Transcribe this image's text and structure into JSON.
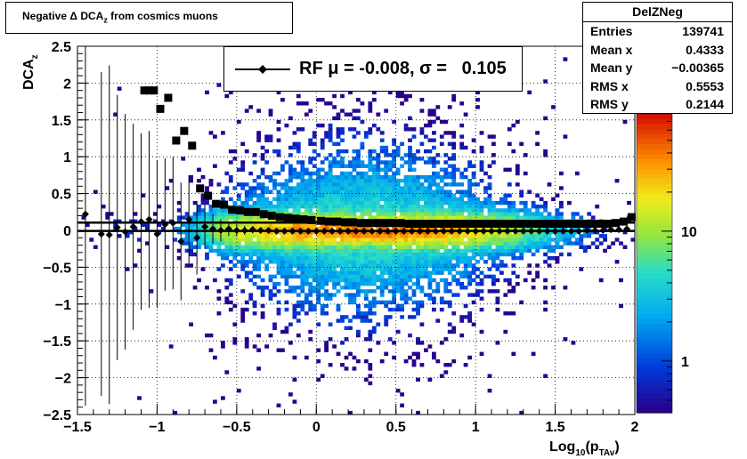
{
  "title": "Negative Δ DCA_z from cosmics muons",
  "title_parts": {
    "main": "Negative Δ DCA",
    "sub": "z",
    "tail": " from cosmics muons"
  },
  "stats": {
    "name": "DelZNeg",
    "rows": [
      {
        "label": "Entries",
        "value": "139741"
      },
      {
        "label": "Mean x",
        "value": "0.4333"
      },
      {
        "label": "Mean y",
        "value": "−0.00365"
      },
      {
        "label": "RMS x",
        "value": "0.5553"
      },
      {
        "label": "RMS y",
        "value": "0.2144"
      }
    ]
  },
  "legend": {
    "text": "RF μ = -0.008, σ =   0.105"
  },
  "colors": {
    "marker": "#000000",
    "frame": "#000000",
    "grid": "#000000"
  },
  "chart_data": {
    "type": "heatmap",
    "xlabel": "Log10(pTAv)",
    "xlabel_parts": {
      "main": "Log",
      "sub1": "10",
      "open": "(p",
      "sub2": "TAv",
      "close": ")"
    },
    "ylabel": "DCA_z",
    "ylabel_parts": {
      "main": "DCA",
      "sub": "z"
    },
    "xlim": [
      -1.5,
      2
    ],
    "ylim": [
      -2.5,
      2.5
    ],
    "grid": true,
    "color_scale": "log",
    "colorbar_ticks": [
      "1",
      "10"
    ],
    "colorbar_tick_values": [
      1,
      10
    ],
    "colorbar_range": [
      0.4,
      80
    ],
    "x_ticks": [
      {
        "v": -1.5,
        "label": "−1.5"
      },
      {
        "v": -1,
        "label": "−1"
      },
      {
        "v": -0.5,
        "label": "−0.5"
      },
      {
        "v": 0,
        "label": "0"
      },
      {
        "v": 0.5,
        "label": "0.5"
      },
      {
        "v": 1,
        "label": "1"
      },
      {
        "v": 1.5,
        "label": "1.5"
      },
      {
        "v": 2,
        "label": "2"
      }
    ],
    "y_ticks": [
      {
        "v": -2.5,
        "label": "−2.5"
      },
      {
        "v": -2,
        "label": "−2"
      },
      {
        "v": -1.5,
        "label": "−1.5"
      },
      {
        "v": -1,
        "label": "−1"
      },
      {
        "v": -0.5,
        "label": "−0.5"
      },
      {
        "v": 0,
        "label": "0"
      },
      {
        "v": 0.5,
        "label": "0.5"
      },
      {
        "v": 1,
        "label": "1"
      },
      {
        "v": 1.5,
        "label": "1.5"
      },
      {
        "v": 2,
        "label": "2"
      },
      {
        "v": 2.5,
        "label": "2.5"
      }
    ],
    "series": [
      {
        "name": "RF",
        "marker": "diamond",
        "x": [
          -1.45,
          -1.35,
          -1.3,
          -1.25,
          -1.2,
          -1.15,
          -1.1,
          -1.05,
          -1.0,
          -0.95,
          -0.9,
          -0.85,
          -0.8,
          -0.75,
          -0.7,
          -0.65,
          -0.6,
          -0.55,
          -0.5,
          -0.45,
          -0.4,
          -0.35,
          -0.3,
          -0.25,
          -0.2,
          -0.15,
          -0.1,
          -0.05,
          0.0,
          0.05,
          0.1,
          0.15,
          0.2,
          0.25,
          0.3,
          0.35,
          0.4,
          0.45,
          0.5,
          0.55,
          0.6,
          0.65,
          0.7,
          0.75,
          0.8,
          0.85,
          0.9,
          0.95,
          1.0,
          1.05,
          1.1,
          1.15,
          1.2,
          1.25,
          1.3,
          1.35,
          1.4,
          1.45,
          1.5,
          1.55,
          1.6,
          1.65,
          1.7,
          1.75,
          1.8,
          1.85,
          1.9,
          1.95
        ],
        "y": [
          0.22,
          -0.05,
          -0.06,
          0.04,
          -0.02,
          0.05,
          0.12,
          0.15,
          -0.05,
          0.08,
          0.1,
          -0.15,
          0.15,
          -0.1,
          0.05,
          0.02,
          0.0,
          0.02,
          0.0,
          0.0,
          0.01,
          0.0,
          0.0,
          -0.01,
          -0.01,
          -0.01,
          -0.01,
          -0.01,
          -0.01,
          -0.01,
          -0.01,
          -0.01,
          -0.01,
          -0.01,
          -0.01,
          -0.01,
          -0.01,
          -0.01,
          -0.01,
          -0.01,
          -0.01,
          -0.01,
          -0.01,
          -0.01,
          -0.01,
          -0.01,
          -0.01,
          -0.01,
          -0.01,
          -0.01,
          -0.01,
          -0.01,
          -0.01,
          -0.01,
          -0.01,
          -0.01,
          -0.01,
          -0.01,
          -0.01,
          -0.01,
          -0.01,
          -0.01,
          0.0,
          0.0,
          0.0,
          0.01,
          0.01,
          0.02
        ],
        "yerr": [
          2.6,
          2.2,
          2.3,
          1.8,
          1.6,
          1.4,
          1.2,
          1.2,
          1.0,
          0.9,
          0.9,
          0.8,
          0.6,
          0.5,
          0.3,
          0.2,
          0.15,
          0.1,
          0.08,
          0.06,
          0.05,
          0.04,
          0.04,
          0.03,
          0.03,
          0.03,
          0.03,
          0.03,
          0.03,
          0.03,
          0.03,
          0.03,
          0.03,
          0.03,
          0.03,
          0.03,
          0.03,
          0.03,
          0.03,
          0.03,
          0.03,
          0.03,
          0.03,
          0.03,
          0.03,
          0.03,
          0.03,
          0.03,
          0.03,
          0.03,
          0.03,
          0.03,
          0.03,
          0.03,
          0.03,
          0.03,
          0.03,
          0.03,
          0.03,
          0.03,
          0.03,
          0.03,
          0.03,
          0.03,
          0.03,
          0.03,
          0.03,
          0.03
        ]
      },
      {
        "marker": "square",
        "x": [
          -1.08,
          -1.05,
          -1.02,
          -0.98,
          -0.93,
          -0.88,
          -0.83,
          -0.78,
          -0.73,
          -0.68,
          -0.63,
          -0.58,
          -0.53,
          -0.48,
          -0.43,
          -0.38,
          -0.33,
          -0.28,
          -0.23,
          -0.18,
          -0.13,
          -0.08,
          -0.03,
          0.03,
          0.08,
          0.13,
          0.18,
          0.23,
          0.28,
          0.33,
          0.38,
          0.43,
          0.48,
          0.53,
          0.58,
          0.63,
          0.68,
          0.73,
          0.78,
          0.83,
          0.88,
          0.93,
          0.98,
          1.03,
          1.08,
          1.13,
          1.18,
          1.23,
          1.28,
          1.33,
          1.38,
          1.43,
          1.48,
          1.53,
          1.58,
          1.63,
          1.68,
          1.73,
          1.78,
          1.83,
          1.88,
          1.93,
          1.98
        ],
        "y": [
          1.9,
          1.9,
          1.9,
          1.65,
          1.8,
          1.22,
          1.35,
          1.15,
          0.57,
          0.47,
          0.36,
          0.35,
          0.28,
          0.27,
          0.25,
          0.25,
          0.22,
          0.2,
          0.18,
          0.17,
          0.16,
          0.15,
          0.14,
          0.13,
          0.12,
          0.12,
          0.11,
          0.11,
          0.1,
          0.1,
          0.1,
          0.1,
          0.1,
          0.1,
          0.09,
          0.09,
          0.09,
          0.09,
          0.09,
          0.09,
          0.09,
          0.09,
          0.09,
          0.09,
          0.09,
          0.09,
          0.09,
          0.09,
          0.09,
          0.09,
          0.09,
          0.09,
          0.09,
          0.09,
          0.09,
          0.09,
          0.09,
          0.09,
          0.09,
          0.09,
          0.1,
          0.12,
          0.18
        ]
      }
    ],
    "fit_lines": [
      0.105,
      -0.008
    ]
  }
}
